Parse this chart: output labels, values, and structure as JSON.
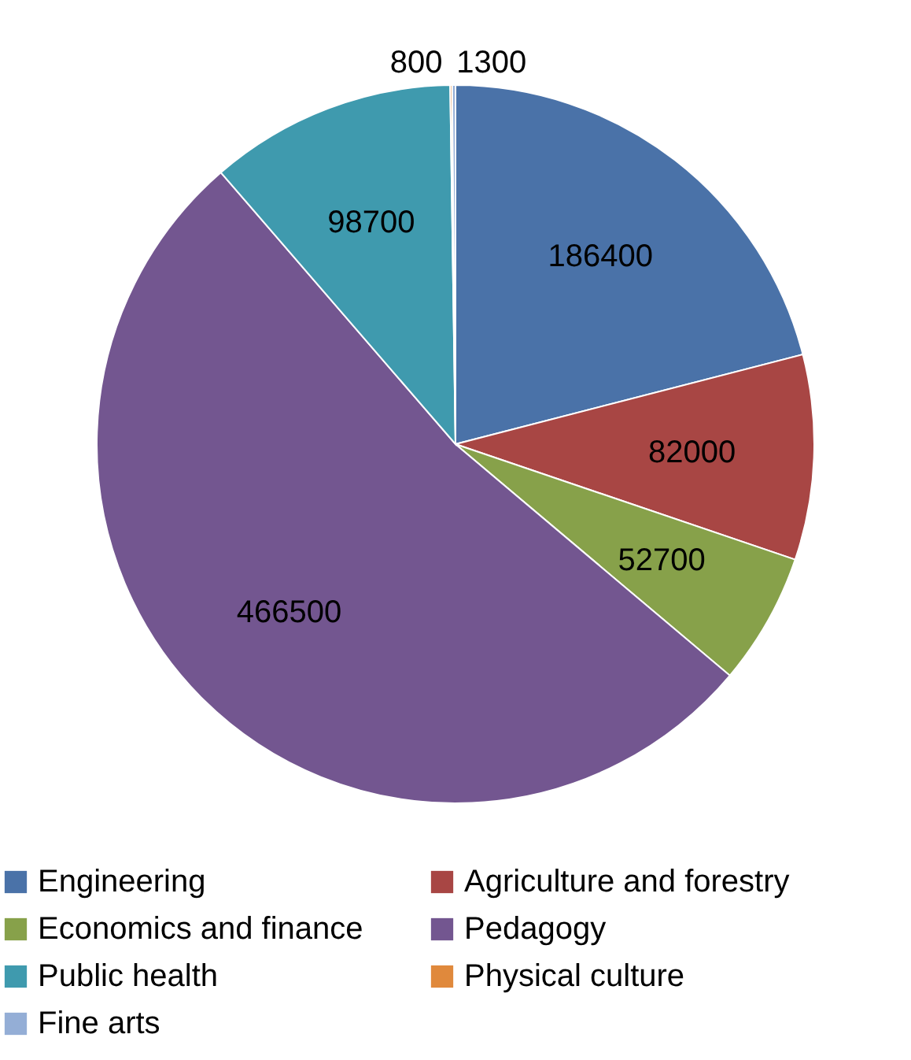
{
  "chart_data": {
    "type": "pie",
    "categories": [
      "Engineering",
      "Agriculture and forestry",
      "Economics and finance",
      "Pedagogy",
      "Public health",
      "Physical culture",
      "Fine arts"
    ],
    "values": [
      186400,
      82000,
      52700,
      466500,
      98700,
      800,
      1300
    ],
    "colors": [
      "#4a72a8",
      "#a84644",
      "#87a14a",
      "#735690",
      "#3f9aae",
      "#e0893c",
      "#94aed6"
    ],
    "data_labels": true,
    "legend": "bottom"
  }
}
